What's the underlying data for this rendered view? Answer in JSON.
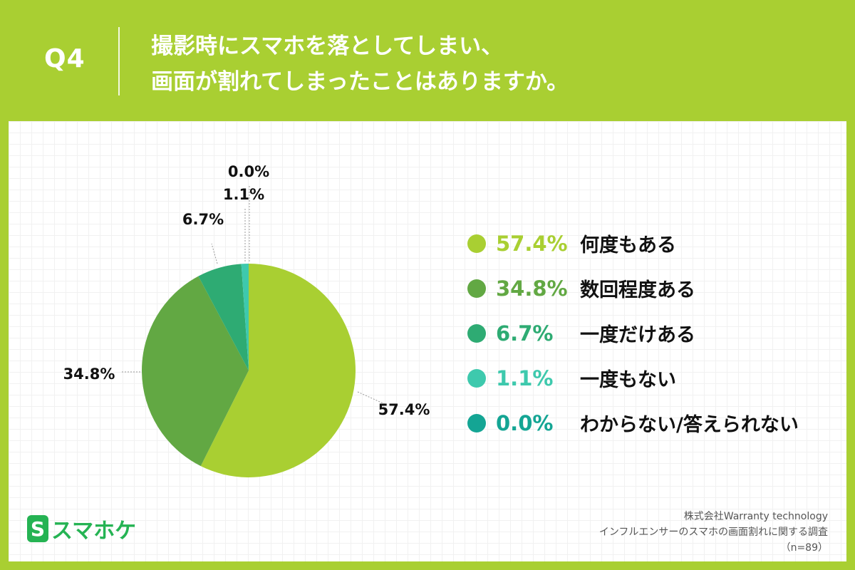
{
  "header": {
    "q_label": "Q4",
    "question_line1": "撮影時にスマホを落としてしまい、",
    "question_line2": "画面が割れてしまったことはありますか。"
  },
  "chart_data": {
    "type": "pie",
    "categories": [
      "何度もある",
      "数回程度ある",
      "一度だけある",
      "一度もない",
      "わからない/答えられない"
    ],
    "values": [
      57.4,
      34.8,
      6.7,
      1.1,
      0.0
    ],
    "value_labels": [
      "57.4%",
      "34.8%",
      "6.7%",
      "1.1%",
      "0.0%"
    ],
    "colors": [
      "#a9cf32",
      "#62a843",
      "#2eab73",
      "#3ec9ad",
      "#14a594"
    ],
    "title": "",
    "legend_placement": "right"
  },
  "legend": [
    {
      "pct": "57.4%",
      "label": "何度もある",
      "color": "#a9cf32"
    },
    {
      "pct": "34.8%",
      "label": "数回程度ある",
      "color": "#62a843"
    },
    {
      "pct": "6.7%",
      "label": "一度だけある",
      "color": "#2eab73"
    },
    {
      "pct": "1.1%",
      "label": "一度もない",
      "color": "#3ec9ad"
    },
    {
      "pct": "0.0%",
      "label": "わからない/答えられない",
      "color": "#14a594"
    }
  ],
  "logo": {
    "badge": "S",
    "text": "スマホケ"
  },
  "source": {
    "company": "株式会社Warranty technology",
    "survey": "インフルエンサーのスマホの画面割れに関する調査",
    "n": "（n=89）"
  }
}
